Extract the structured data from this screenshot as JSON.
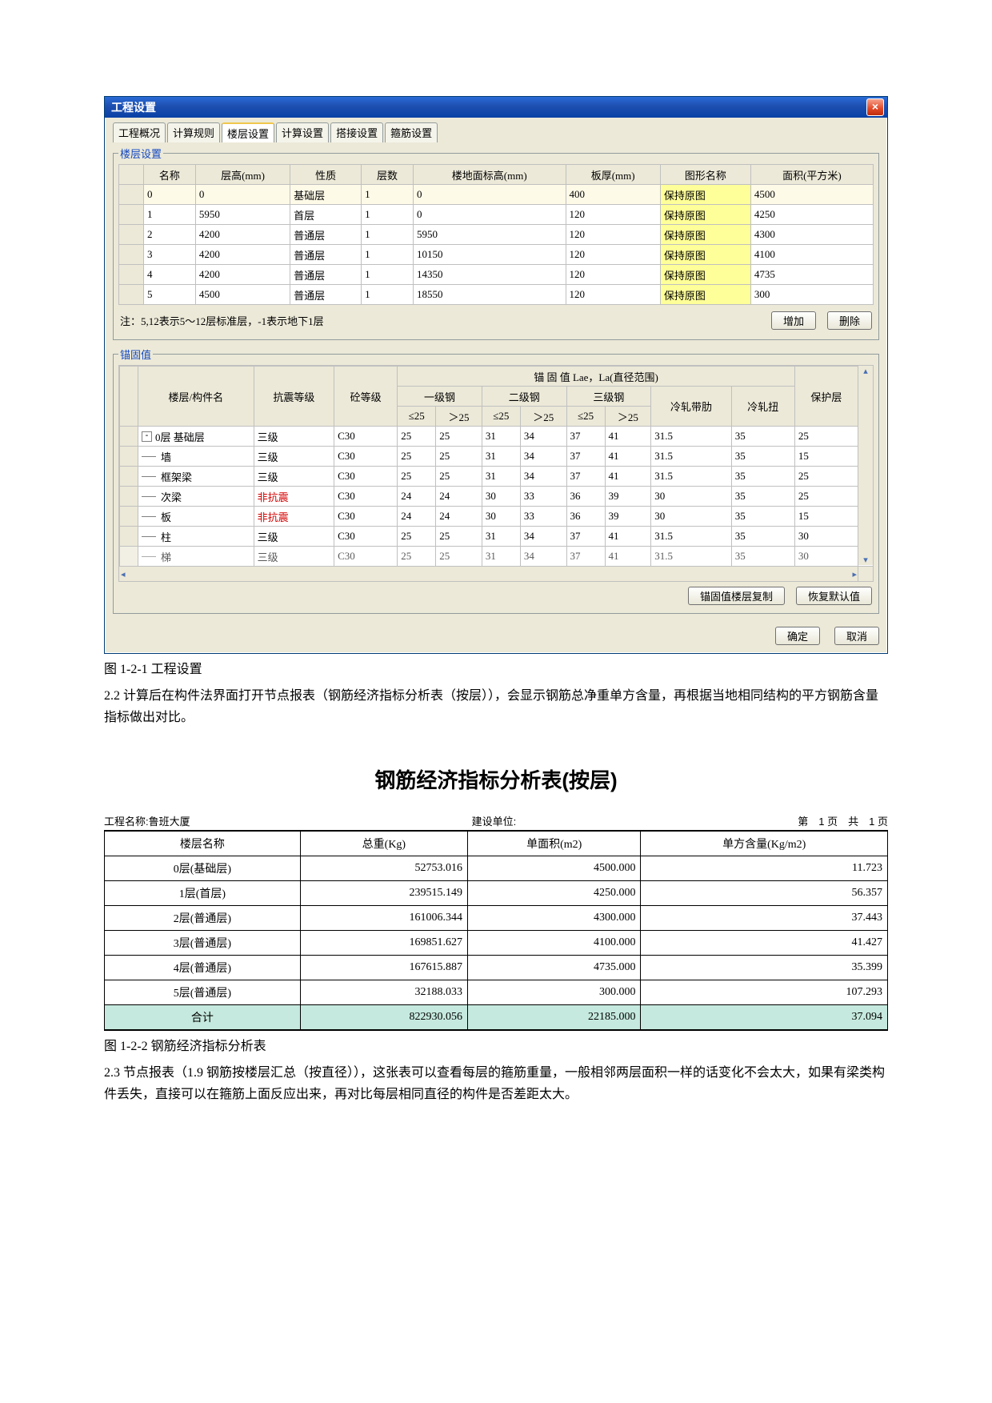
{
  "dialog": {
    "title": "工程设置",
    "close_glyph": "×",
    "tabs": [
      "工程概况",
      "计算规则",
      "楼层设置",
      "计算设置",
      "搭接设置",
      "箍筋设置"
    ],
    "active_tab_index": 2,
    "floor_group_legend": "楼层设置",
    "floor_headers": [
      "名称",
      "层高(mm)",
      "性质",
      "层数",
      "楼地面标高(mm)",
      "板厚(mm)",
      "图形名称",
      "面积(平方米)"
    ],
    "floor_rows": [
      {
        "name": "0",
        "height": "0",
        "nature": "基础层",
        "count": "1",
        "elev": "0",
        "slab": "400",
        "drawing": "保持原图",
        "area": "4500",
        "hi": true
      },
      {
        "name": "1",
        "height": "5950",
        "nature": "首层",
        "count": "1",
        "elev": "0",
        "slab": "120",
        "drawing": "保持原图",
        "area": "4250",
        "hi": true
      },
      {
        "name": "2",
        "height": "4200",
        "nature": "普通层",
        "count": "1",
        "elev": "5950",
        "slab": "120",
        "drawing": "保持原图",
        "area": "4300",
        "hi": false
      },
      {
        "name": "3",
        "height": "4200",
        "nature": "普通层",
        "count": "1",
        "elev": "10150",
        "slab": "120",
        "drawing": "保持原图",
        "area": "4100",
        "hi": false
      },
      {
        "name": "4",
        "height": "4200",
        "nature": "普通层",
        "count": "1",
        "elev": "14350",
        "slab": "120",
        "drawing": "保持原图",
        "area": "4735",
        "hi": false
      },
      {
        "name": "5",
        "height": "4500",
        "nature": "普通层",
        "count": "1",
        "elev": "18550",
        "slab": "120",
        "drawing": "保持原图",
        "area": "300",
        "hi": false
      }
    ],
    "note_text": "注：5,12表示5～12层标准层，-1表示地下1层",
    "btn_add": "增加",
    "btn_del": "删除",
    "anchor_group_legend": "锚固值",
    "anchor_header_top": "锚 固 值 Lae，La(直径范围)",
    "anchor_headers_main": [
      "楼层/构件名",
      "抗震等级",
      "砼等级"
    ],
    "anchor_headers_grade": [
      "一级钢",
      "二级钢",
      "三级钢"
    ],
    "anchor_headers_extra": [
      "冷轧带肋",
      "冷轧扭",
      "保护层"
    ],
    "anchor_sub": [
      "≤25",
      "＞25"
    ],
    "anchor_rows": [
      {
        "name": "0层 基础层",
        "tree": "root",
        "seis": "三级",
        "conc": "C30",
        "v": [
          "25",
          "25",
          "31",
          "34",
          "37",
          "41",
          "31.5",
          "35",
          "25"
        ]
      },
      {
        "name": "墙",
        "tree": "child",
        "seis": "三级",
        "conc": "C30",
        "v": [
          "25",
          "25",
          "31",
          "34",
          "37",
          "41",
          "31.5",
          "35",
          "15"
        ]
      },
      {
        "name": "框架梁",
        "tree": "child",
        "seis": "三级",
        "conc": "C30",
        "v": [
          "25",
          "25",
          "31",
          "34",
          "37",
          "41",
          "31.5",
          "35",
          "25"
        ]
      },
      {
        "name": "次梁",
        "tree": "child",
        "seis": "非抗震",
        "seis_red": true,
        "conc": "C30",
        "v": [
          "24",
          "24",
          "30",
          "33",
          "36",
          "39",
          "30",
          "35",
          "25"
        ]
      },
      {
        "name": "板",
        "tree": "child",
        "seis": "非抗震",
        "seis_red": true,
        "conc": "C30",
        "v": [
          "24",
          "24",
          "30",
          "33",
          "36",
          "39",
          "30",
          "35",
          "15"
        ]
      },
      {
        "name": "柱",
        "tree": "child",
        "seis": "三级",
        "conc": "C30",
        "v": [
          "25",
          "25",
          "31",
          "34",
          "37",
          "41",
          "31.5",
          "35",
          "30"
        ]
      },
      {
        "name": "梯",
        "tree": "child",
        "seis": "三级",
        "conc": "C30",
        "v": [
          "25",
          "25",
          "31",
          "34",
          "37",
          "41",
          "31.5",
          "35",
          "30"
        ],
        "cut": true
      }
    ],
    "btn_copy": "锚固值楼层复制",
    "btn_default": "恢复默认值",
    "btn_ok": "确定",
    "btn_cancel": "取消"
  },
  "captions": {
    "fig1": "图 1-2-1 工程设置",
    "para1": "2.2 计算后在构件法界面打开节点报表（钢筋经济指标分析表（按层）），会显示钢筋总净重单方含量，再根据当地相同结构的平方钢筋含量指标做出对比。",
    "fig2": "图 1-2-2 钢筋经济指标分析表",
    "para2": "2.3 节点报表（1.9 钢筋按楼层汇总（按直径）），这张表可以查看每层的箍筋重量，一般相邻两层面积一样的话变化不会太大，如果有梁类构件丢失，直接可以在箍筋上面反应出来，再对比每层相同直径的构件是否差距太大。"
  },
  "report": {
    "title": "钢筋经济指标分析表(按层)",
    "meta_left_label": "工程名称:",
    "meta_left_value": "鲁班大厦",
    "meta_mid_label": "建设单位:",
    "meta_right": "第　1 页　共　1 页",
    "headers": [
      "楼层名称",
      "总重(Kg)",
      "单面积(m2)",
      "单方含量(Kg/m2)"
    ],
    "rows": [
      {
        "name": "0层(基础层)",
        "w": "52753.016",
        "a": "4500.000",
        "d": "11.723"
      },
      {
        "name": "1层(首层)",
        "w": "239515.149",
        "a": "4250.000",
        "d": "56.357"
      },
      {
        "name": "2层(普通层)",
        "w": "161006.344",
        "a": "4300.000",
        "d": "37.443"
      },
      {
        "name": "3层(普通层)",
        "w": "169851.627",
        "a": "4100.000",
        "d": "41.427"
      },
      {
        "name": "4层(普通层)",
        "w": "167615.887",
        "a": "4735.000",
        "d": "35.399"
      },
      {
        "name": "5层(普通层)",
        "w": "32188.033",
        "a": "300.000",
        "d": "107.293"
      }
    ],
    "total": {
      "name": "合计",
      "w": "822930.056",
      "a": "22185.000",
      "d": "37.094"
    }
  }
}
